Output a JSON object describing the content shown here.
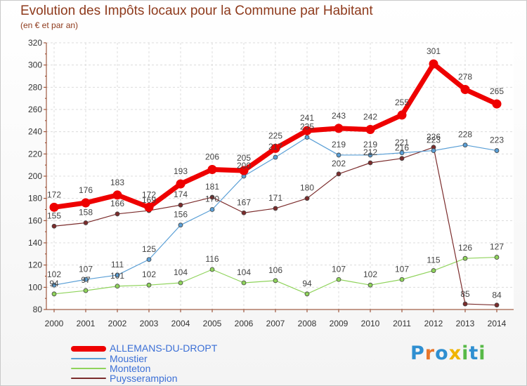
{
  "chart_data": {
    "type": "line",
    "title": "Evolution des Impôts locaux pour la Commune par Habitant",
    "subtitle": "(en € et par an)",
    "xlabel": "",
    "ylabel": "",
    "categories": [
      "2000",
      "2001",
      "2002",
      "2003",
      "2004",
      "2005",
      "2006",
      "2007",
      "2008",
      "2009",
      "2010",
      "2011",
      "2012",
      "2013",
      "2014"
    ],
    "ylim": [
      80,
      320
    ],
    "yticks": [
      80,
      100,
      120,
      140,
      160,
      180,
      200,
      220,
      240,
      260,
      280,
      300,
      320
    ],
    "grid": true,
    "legend_position": "bottom-left",
    "series": [
      {
        "name": "ALLEMANS-DU-DROPT",
        "color": "#ee0000",
        "values": [
          172,
          176,
          183,
          172,
          193,
          206,
          205,
          225,
          241,
          243,
          242,
          255,
          301,
          278,
          265
        ]
      },
      {
        "name": "Moustier",
        "color": "#5a9fd6",
        "values": [
          102,
          107,
          111,
          125,
          156,
          170,
          200,
          217,
          235,
          219,
          219,
          221,
          223,
          228,
          223
        ]
      },
      {
        "name": "Monteton",
        "color": "#8fd35b",
        "values": [
          94,
          97,
          101,
          102,
          104,
          116,
          104,
          106,
          94,
          107,
          102,
          107,
          115,
          126,
          127
        ]
      },
      {
        "name": "Puysserampion",
        "color": "#7b2c2c",
        "values": [
          155,
          158,
          166,
          169,
          174,
          181,
          167,
          171,
          180,
          202,
          212,
          216,
          226,
          85,
          84
        ]
      }
    ],
    "data_labels": [
      [
        "172",
        "176",
        "183",
        "172",
        "193",
        "206",
        "205",
        "225",
        "241",
        "243",
        "242",
        "255",
        "301",
        "278",
        "265"
      ],
      [
        "102",
        "107",
        "111",
        "125",
        "156",
        "170",
        "200",
        "217",
        "235",
        "219",
        "219",
        "221",
        "223",
        "228",
        "223"
      ],
      [
        "94",
        "97",
        "101",
        "102",
        "104",
        "116",
        "104",
        "106",
        "94",
        "107",
        "102",
        "107",
        "115",
        "126",
        "127"
      ],
      [
        "155",
        "158",
        "166",
        "169",
        "174",
        "181",
        "167",
        "171",
        "180",
        "202",
        "212",
        "216",
        "226",
        "85",
        "84"
      ]
    ]
  },
  "brand": {
    "letters": [
      "P",
      "r",
      "o",
      "x",
      "i",
      "t",
      "i"
    ],
    "colors": [
      "#2f8fd1",
      "#e8762b",
      "#2f8fd1",
      "#f0b400",
      "#57b947",
      "#2f8fd1",
      "#57b947"
    ]
  }
}
